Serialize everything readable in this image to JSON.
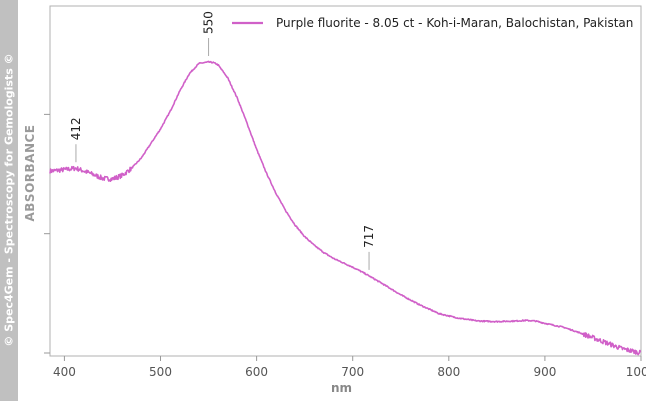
{
  "watermark": "© Spec4Gem - Spectroscopy for Gemologists ©",
  "chart_data": {
    "type": "line",
    "xlabel": "nm",
    "ylabel": "ABSORBANCE",
    "xlim": [
      385,
      1000
    ],
    "ylim": [
      0,
      1.0
    ],
    "xticks": [
      400,
      500,
      600,
      700,
      800,
      900,
      1000
    ],
    "yticks": [
      0,
      0.41,
      0.82
    ],
    "grid": false,
    "legend_position": "top-right",
    "color": "#d060c8",
    "series": [
      {
        "name": "Purple fluorite - 8.05 ct - Koh-i-Maran, Balochistan, Pakistan",
        "x": [
          385,
          400,
          412,
          425,
          440,
          450,
          460,
          470,
          480,
          490,
          500,
          510,
          520,
          530,
          540,
          550,
          555,
          560,
          570,
          580,
          590,
          600,
          610,
          620,
          630,
          640,
          650,
          660,
          670,
          680,
          690,
          700,
          710,
          717,
          730,
          750,
          770,
          790,
          810,
          830,
          850,
          870,
          880,
          890,
          900,
          920,
          940,
          960,
          980,
          1000
        ],
        "values": [
          0.625,
          0.63,
          0.635,
          0.62,
          0.6,
          0.598,
          0.61,
          0.635,
          0.67,
          0.72,
          0.77,
          0.83,
          0.9,
          0.96,
          0.995,
          1.0,
          0.998,
          0.99,
          0.945,
          0.875,
          0.79,
          0.7,
          0.62,
          0.55,
          0.49,
          0.44,
          0.4,
          0.37,
          0.345,
          0.325,
          0.31,
          0.295,
          0.278,
          0.265,
          0.24,
          0.2,
          0.165,
          0.135,
          0.12,
          0.11,
          0.108,
          0.11,
          0.112,
          0.11,
          0.102,
          0.088,
          0.065,
          0.04,
          0.015,
          0.0
        ]
      }
    ],
    "annotations": [
      {
        "x": 412,
        "label": "412"
      },
      {
        "x": 550,
        "label": "550"
      },
      {
        "x": 717,
        "label": "717"
      }
    ]
  }
}
